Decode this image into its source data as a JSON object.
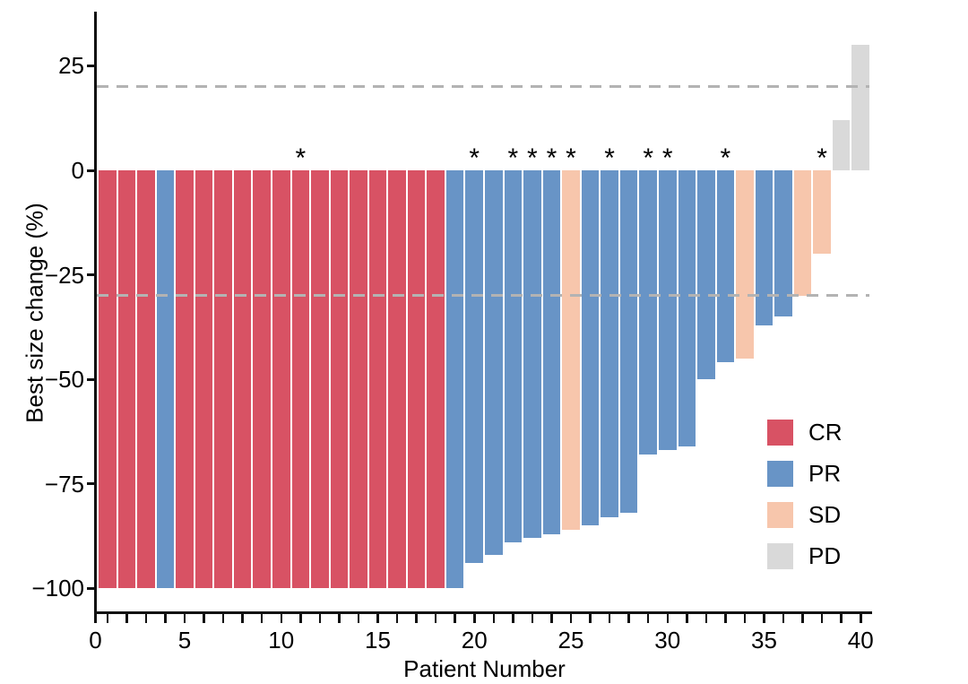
{
  "chart_data": {
    "type": "bar",
    "subtype": "waterfall",
    "title": "",
    "xlabel": "Patient Number",
    "ylabel": "Best size change (%)",
    "xlim": [
      0,
      40
    ],
    "ylim": [
      -107,
      37
    ],
    "grid": "off",
    "legend_position": "right-middle",
    "y_ticks": [
      {
        "label": "25",
        "value": 25
      },
      {
        "label": "0",
        "value": 0
      },
      {
        "label": "−25",
        "value": -25
      },
      {
        "label": "−50",
        "value": -50
      },
      {
        "label": "−75",
        "value": -75
      },
      {
        "label": "−100",
        "value": -100
      }
    ],
    "x_major_ticks": [
      0,
      5,
      10,
      15,
      20,
      25,
      30,
      35,
      40
    ],
    "x_minor_tick_every": 1,
    "threshold_lines": [
      {
        "value": 20,
        "style": "dashed",
        "color": "#b3b3b3"
      },
      {
        "value": -30,
        "style": "dashed",
        "color": "#b3b3b3"
      }
    ],
    "legend": [
      {
        "label": "CR",
        "color": "#d85264"
      },
      {
        "label": "PR",
        "color": "#6894c6"
      },
      {
        "label": "SD",
        "color": "#f7c6ac"
      },
      {
        "label": "PD",
        "color": "#d9d9d9"
      }
    ],
    "annotation_glyph": "*",
    "patients": [
      {
        "n": 1,
        "change": -100,
        "response": "CR",
        "star": false
      },
      {
        "n": 2,
        "change": -100,
        "response": "CR",
        "star": false
      },
      {
        "n": 3,
        "change": -100,
        "response": "CR",
        "star": false
      },
      {
        "n": 4,
        "change": -100,
        "response": "PR",
        "star": false
      },
      {
        "n": 5,
        "change": -100,
        "response": "CR",
        "star": false
      },
      {
        "n": 6,
        "change": -100,
        "response": "CR",
        "star": false
      },
      {
        "n": 7,
        "change": -100,
        "response": "CR",
        "star": false
      },
      {
        "n": 8,
        "change": -100,
        "response": "CR",
        "star": false
      },
      {
        "n": 9,
        "change": -100,
        "response": "CR",
        "star": false
      },
      {
        "n": 10,
        "change": -100,
        "response": "CR",
        "star": false
      },
      {
        "n": 11,
        "change": -100,
        "response": "CR",
        "star": true
      },
      {
        "n": 12,
        "change": -100,
        "response": "CR",
        "star": false
      },
      {
        "n": 13,
        "change": -100,
        "response": "CR",
        "star": false
      },
      {
        "n": 14,
        "change": -100,
        "response": "CR",
        "star": false
      },
      {
        "n": 15,
        "change": -100,
        "response": "CR",
        "star": false
      },
      {
        "n": 16,
        "change": -100,
        "response": "CR",
        "star": false
      },
      {
        "n": 17,
        "change": -100,
        "response": "CR",
        "star": false
      },
      {
        "n": 18,
        "change": -100,
        "response": "CR",
        "star": false
      },
      {
        "n": 19,
        "change": -100,
        "response": "PR",
        "star": false
      },
      {
        "n": 20,
        "change": -94,
        "response": "PR",
        "star": true
      },
      {
        "n": 21,
        "change": -92,
        "response": "PR",
        "star": false
      },
      {
        "n": 22,
        "change": -89,
        "response": "PR",
        "star": true
      },
      {
        "n": 23,
        "change": -88,
        "response": "PR",
        "star": true
      },
      {
        "n": 24,
        "change": -87,
        "response": "PR",
        "star": true
      },
      {
        "n": 25,
        "change": -86,
        "response": "SD",
        "star": true
      },
      {
        "n": 26,
        "change": -85,
        "response": "PR",
        "star": false
      },
      {
        "n": 27,
        "change": -83,
        "response": "PR",
        "star": true
      },
      {
        "n": 28,
        "change": -82,
        "response": "PR",
        "star": false
      },
      {
        "n": 29,
        "change": -68,
        "response": "PR",
        "star": true
      },
      {
        "n": 30,
        "change": -67,
        "response": "PR",
        "star": true
      },
      {
        "n": 31,
        "change": -66,
        "response": "PR",
        "star": false
      },
      {
        "n": 32,
        "change": -50,
        "response": "PR",
        "star": false
      },
      {
        "n": 33,
        "change": -46,
        "response": "PR",
        "star": true
      },
      {
        "n": 34,
        "change": -45,
        "response": "SD",
        "star": false
      },
      {
        "n": 35,
        "change": -37,
        "response": "PR",
        "star": false
      },
      {
        "n": 36,
        "change": -35,
        "response": "PR",
        "star": false
      },
      {
        "n": 37,
        "change": -30,
        "response": "SD",
        "star": false
      },
      {
        "n": 38,
        "change": -20,
        "response": "SD",
        "star": true
      },
      {
        "n": 39,
        "change": 12,
        "response": "PD",
        "star": false
      },
      {
        "n": 40,
        "change": 30,
        "response": "PD",
        "star": false
      }
    ]
  }
}
